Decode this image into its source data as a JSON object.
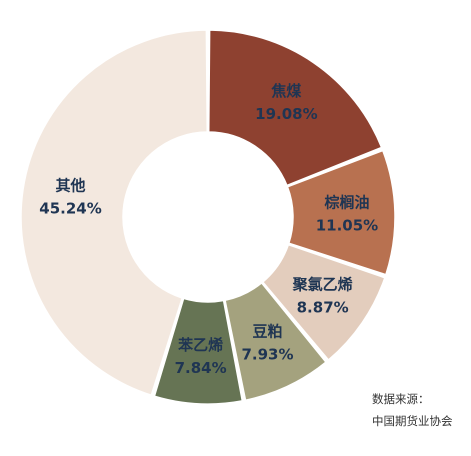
{
  "chart_data": {
    "type": "pie",
    "donut": true,
    "slices": [
      {
        "label": "焦煤",
        "value": 19.08,
        "value_label": "19.08%",
        "color": "#8e4130"
      },
      {
        "label": "棕榈油",
        "value": 11.05,
        "value_label": "11.05%",
        "color": "#b87150"
      },
      {
        "label": "聚氯乙烯",
        "value": 8.87,
        "value_label": "8.87%",
        "color": "#e3cdbd"
      },
      {
        "label": "豆粕",
        "value": 7.93,
        "value_label": "7.93%",
        "color": "#a4a27e"
      },
      {
        "label": "苯乙烯",
        "value": 7.84,
        "value_label": "7.84%",
        "color": "#667454"
      },
      {
        "label": "其他",
        "value": 45.24,
        "value_label": "45.24%",
        "color": "#f3e8df"
      }
    ],
    "source": {
      "prefix": "数据来源：",
      "name": "中国期货业协会"
    }
  }
}
